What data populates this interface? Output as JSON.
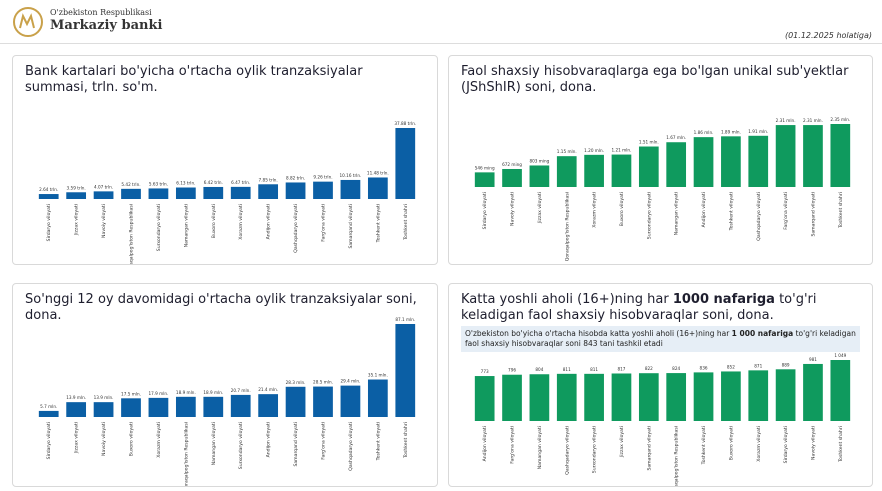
{
  "header": {
    "org_line1": "O'zbekiston Respublikasi",
    "org_line2": "Markaziy banki",
    "date": "(01.12.2025 holatiga)"
  },
  "chart_data": [
    {
      "type": "bar",
      "title": "Bank kartalari bo'yicha o'rtacha oylik tranzaksiyalar summasi, trln. so'm.",
      "color": "#0b5fa5",
      "categories": [
        "Sirdaryo viloyati",
        "Jizzax viloyati",
        "Navoiy viloyati",
        "Qoraqalpog'iston Respublikasi",
        "Surxondaryo viloyati",
        "Namangan viloyati",
        "Buxoro viloyati",
        "Xorazm viloyati",
        "Andijon viloyati",
        "Qashqadaryo viloyati",
        "Farg'ona viloyati",
        "Samarqand viloyati",
        "Toshkent viloyati",
        "Toshkent shahri"
      ],
      "values": [
        2.64,
        3.59,
        4.07,
        5.42,
        5.63,
        6.13,
        6.42,
        6.47,
        7.85,
        8.82,
        9.26,
        10.16,
        11.48,
        37.88
      ],
      "value_labels": [
        "2.64 trln.",
        "3.59 trln.",
        "4.07 trln.",
        "5.42 trln.",
        "5.63 trln.",
        "6.13 trln.",
        "6.42 trln.",
        "6.47 trln.",
        "7.85 trln.",
        "8.82 trln.",
        "9.26 trln.",
        "10.16 trln.",
        "11.48 trln.",
        "37.88 trln."
      ]
    },
    {
      "type": "bar",
      "title": "Faol shaxsiy hisobvaraqlarga ega bo'lgan unikal sub'yektlar (JShShIR) soni, dona.",
      "color": "#0f9a5e",
      "categories": [
        "Sirdaryo viloyati",
        "Navoiy viloyati",
        "Jizzax viloyati",
        "Qoraqalpog'iston Respublikasi",
        "Xorazm viloyati",
        "Buxoro viloyati",
        "Surxondaryo viloyati",
        "Namangan viloyati",
        "Andijon viloyati",
        "Toshkent viloyati",
        "Qashqadaryo viloyati",
        "Farg'ona viloyati",
        "Samarqand viloyati",
        "Toshkent shahri"
      ],
      "values": [
        546000,
        672000,
        803000,
        1150000,
        1200000,
        1210000,
        1510000,
        1670000,
        1860000,
        1890000,
        1910000,
        2310000,
        2310000,
        2350000
      ],
      "value_labels": [
        "546 ming",
        "672 ming",
        "803 ming",
        "1.15 mln.",
        "1.20 mln.",
        "1.21 mln.",
        "1.51 mln.",
        "1.67 mln.",
        "1.86 mln.",
        "1.89 mln.",
        "1.91 mln.",
        "2.31 mln.",
        "2.31 mln.",
        "2.35 mln."
      ]
    },
    {
      "type": "bar",
      "title": "So'nggi 12 oy davomidagi o'rtacha oylik tranzaksiyalar soni, dona.",
      "color": "#0b5fa5",
      "categories": [
        "Sirdaryo viloyati",
        "Jizzax viloyati",
        "Navoiy viloyati",
        "Buxoro viloyati",
        "Xorazm viloyati",
        "Qoraqalpog'iston Respublikasi",
        "Namangan viloyati",
        "Surxondaryo viloyati",
        "Andijon viloyati",
        "Samarqand viloyati",
        "Farg'ona viloyati",
        "Qashqadaryo viloyati",
        "Toshkent viloyati",
        "Toshkent shahri"
      ],
      "values": [
        5.7,
        13.9,
        13.9,
        17.5,
        17.9,
        18.9,
        18.9,
        20.7,
        21.4,
        28.3,
        28.5,
        29.4,
        35.1,
        87.1
      ],
      "value_labels": [
        "5.7 mln.",
        "13.9 mln.",
        "13.9 mln.",
        "17.5 mln.",
        "17.9 mln.",
        "18.9 mln.",
        "18.9 mln.",
        "20.7 mln.",
        "21.4 mln.",
        "28.3 mln.",
        "28.5 mln.",
        "29.4 mln.",
        "35.1 mln.",
        "87.1 mln."
      ]
    },
    {
      "type": "bar",
      "title": [
        "Katta yoshli aholi (16+)ning har ",
        "1000 nafariga",
        " to'g'ri keladigan faol shaxsiy hisobvaraqlar soni, dona."
      ],
      "color": "#0f9a5e",
      "note": [
        "O'zbekiston bo'yicha o'rtacha hisobda katta yoshli aholi (16+)ning har ",
        "1 000 nafariga",
        " to'g'ri keladigan faol shaxsiy hisobvaraqlar soni 843 tani tashkil etadi"
      ],
      "categories": [
        "Andijon viloyati",
        "Farg'ona viloyati",
        "Namangan viloyati",
        "Qashqadaryo viloyati",
        "Surxondaryo viloyati",
        "Jizzax viloyati",
        "Samarqand viloyati",
        "Qoraqalpog'iston Respublikasi",
        "Toshkent viloyati",
        "Buxoro viloyati",
        "Xorazm viloyati",
        "Sirdaryo viloyati",
        "Navoiy viloyati",
        "Toshkent shahri"
      ],
      "values": [
        773,
        796,
        804,
        811,
        811,
        817,
        822,
        824,
        836,
        852,
        871,
        889,
        981,
        1049
      ],
      "value_labels": [
        "773",
        "796",
        "804",
        "811",
        "811",
        "817",
        "822",
        "824",
        "836",
        "852",
        "871",
        "889",
        "981",
        "1 049"
      ]
    }
  ]
}
